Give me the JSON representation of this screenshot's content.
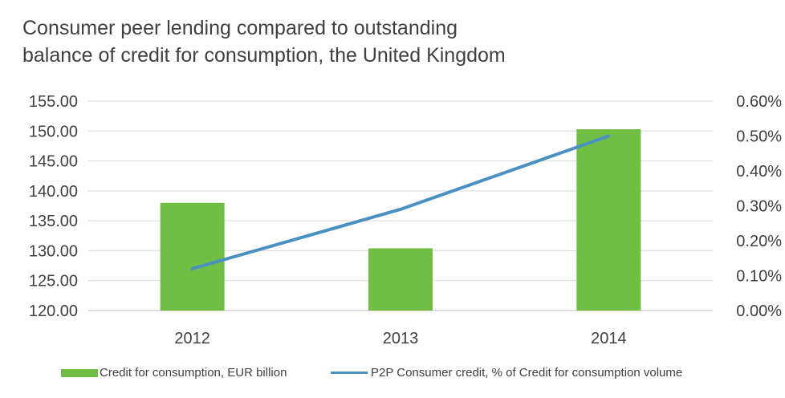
{
  "chart_data": {
    "type": "bar",
    "title": [
      "Consumer peer lending compared to outstanding",
      "balance of credit for consumption, the United Kingdom"
    ],
    "categories": [
      "2012",
      "2013",
      "2014"
    ],
    "series": [
      {
        "name": "Credit for consumption, EUR billion",
        "type": "bar",
        "axis": "left",
        "values": [
          138.0,
          130.4,
          150.3
        ],
        "color": "#70BF44"
      },
      {
        "name": "P2P Consumer credit, % of Credit for consumption volume",
        "type": "line",
        "axis": "right",
        "values": [
          0.12,
          0.29,
          0.5
        ],
        "color": "#4A90C2"
      }
    ],
    "ylim_left": [
      120,
      155
    ],
    "ylim_right": [
      0,
      0.6
    ],
    "yticks_left": [
      "120.00",
      "125.00",
      "130.00",
      "135.00",
      "140.00",
      "145.00",
      "150.00",
      "155.00"
    ],
    "yticks_right": [
      "0.00%",
      "0.10%",
      "0.20%",
      "0.30%",
      "0.40%",
      "0.50%",
      "0.60%"
    ],
    "gridlines": true,
    "legend_position": "bottom"
  }
}
